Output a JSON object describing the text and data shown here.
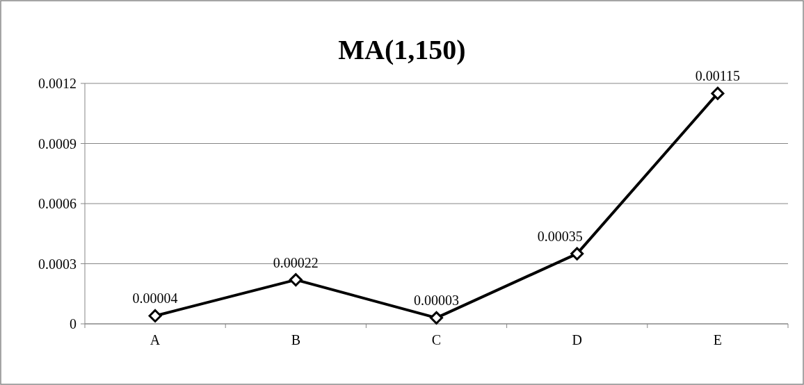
{
  "chart_data": {
    "type": "line",
    "title": "MA(1,150)",
    "categories": [
      "A",
      "B",
      "C",
      "D",
      "E"
    ],
    "series": [
      {
        "color": "#000000",
        "values": [
          4e-05,
          0.00022,
          3e-05,
          0.00035,
          0.00115
        ],
        "value_labels": [
          "0.00004",
          "0.00022",
          "0.00003",
          "0.00035",
          "0.00115"
        ]
      }
    ],
    "ylim": [
      0,
      0.0012
    ],
    "yticks": [
      0,
      0.0003,
      0.0006,
      0.0009,
      0.0012
    ],
    "grid": "y",
    "marker": "diamond",
    "line_style": "solid"
  }
}
